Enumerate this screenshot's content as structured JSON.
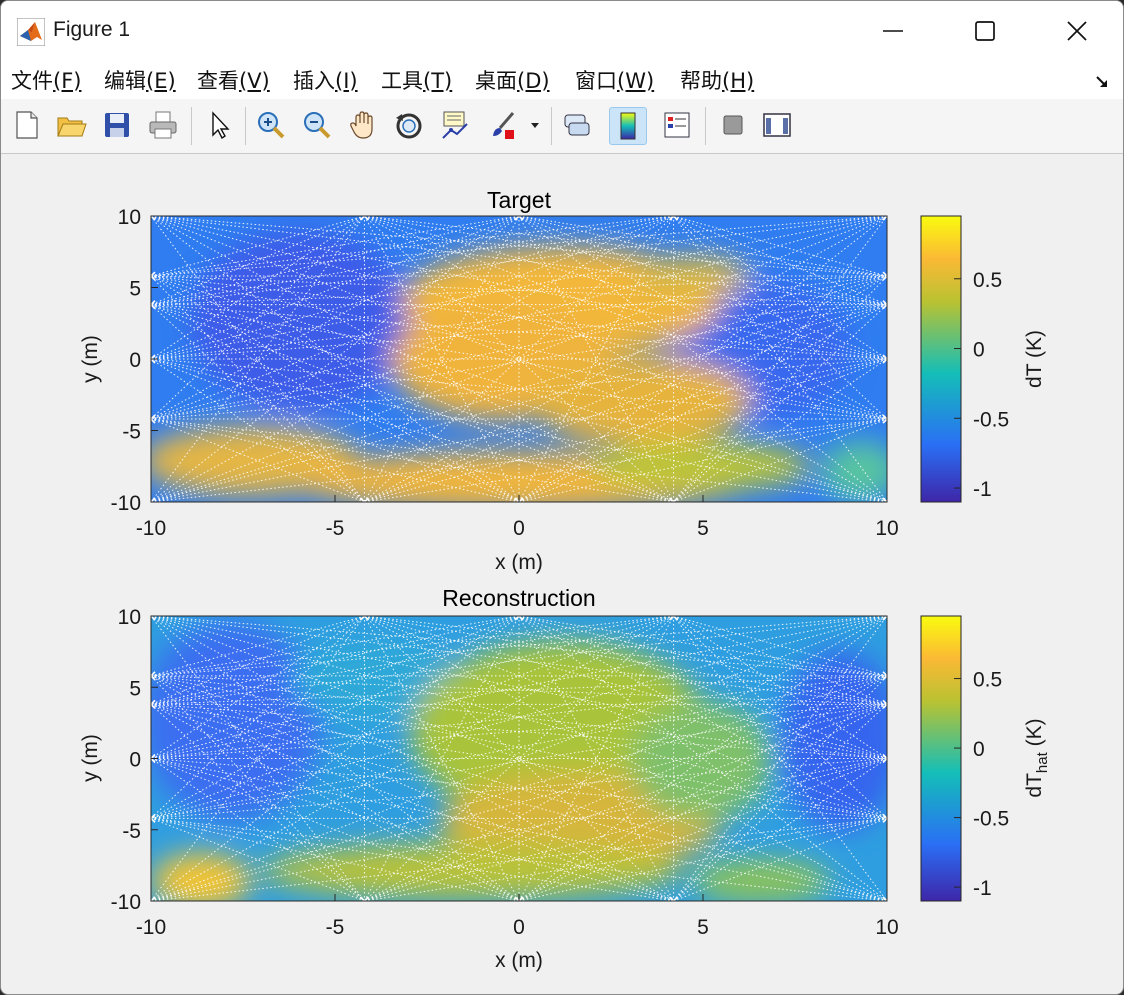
{
  "window": {
    "title": "Figure 1",
    "controls": [
      "minimize",
      "maximize",
      "close"
    ]
  },
  "menu": [
    {
      "label": "文件",
      "mnemonic": "(F)"
    },
    {
      "label": "编辑",
      "mnemonic": "(E)"
    },
    {
      "label": "查看",
      "mnemonic": "(V)"
    },
    {
      "label": "插入",
      "mnemonic": "(I)"
    },
    {
      "label": "工具",
      "mnemonic": "(T)"
    },
    {
      "label": "桌面",
      "mnemonic": "(D)"
    },
    {
      "label": "窗口",
      "mnemonic": "(W)"
    },
    {
      "label": "帮助",
      "mnemonic": "(H)"
    }
  ],
  "toolbar": [
    "new-figure-icon",
    "open-file-icon",
    "save-icon",
    "print-icon",
    "edit-plot-arrow-icon",
    "zoom-in-icon",
    "zoom-out-icon",
    "pan-hand-icon",
    "rotate-3d-icon",
    "data-cursor-icon",
    "brush-icon",
    "link-plot-icon",
    "colorbar-icon",
    "legend-icon",
    "hide-plot-tools-icon",
    "show-plot-tools-icon"
  ],
  "colors": {
    "colormap": [
      "#3e26a8",
      "#2a6ff5",
      "#14beb8",
      "#b9c232",
      "#fbb935",
      "#f9fb0e"
    ]
  },
  "chart_data": [
    {
      "type": "heatmap",
      "title": "Target",
      "xlabel": "x (m)",
      "ylabel": "y (m)",
      "colorbar_label": "dT (K)",
      "xlim": [
        -10,
        10
      ],
      "ylim": [
        -10,
        10
      ],
      "clim": [
        -1.1,
        0.95
      ],
      "xticks": [
        "-10",
        "-5",
        "0",
        "5",
        "10"
      ],
      "yticks": [
        "10",
        "5",
        "0",
        "-5",
        "-10"
      ],
      "cticks": [
        "0.5",
        "0",
        "-0.5",
        "-1"
      ],
      "overlay": "white dotted ray paths between sensors on the boundary"
    },
    {
      "type": "heatmap",
      "title": "Reconstruction",
      "xlabel": "x (m)",
      "ylabel": "y (m)",
      "colorbar_label": "dT",
      "colorbar_label_sub": "hat",
      "colorbar_label_unit": " (K)",
      "xlim": [
        -10,
        10
      ],
      "ylim": [
        -10,
        10
      ],
      "clim": [
        -1.1,
        0.95
      ],
      "xticks": [
        "-10",
        "-5",
        "0",
        "5",
        "10"
      ],
      "yticks": [
        "10",
        "5",
        "0",
        "-5",
        "-10"
      ],
      "cticks": [
        "0.5",
        "0",
        "-0.5",
        "-1"
      ],
      "overlay": "white dotted ray paths between sensors on the boundary"
    }
  ]
}
